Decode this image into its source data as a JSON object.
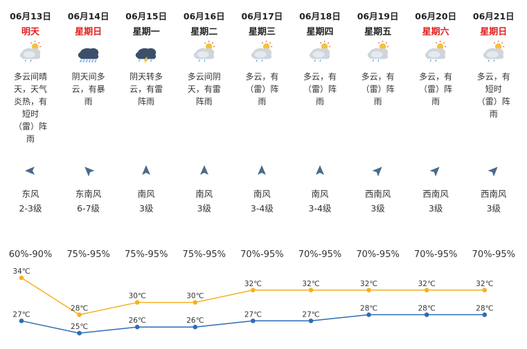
{
  "forecast": [
    {
      "date": "06月13日",
      "dow": "明天",
      "dow_red": true,
      "icon": "partly-cloudy-sun-icon",
      "desc": [
        "多云间晴",
        "天，天气",
        "炎热，有",
        "短时",
        "（雷）阵",
        "雨"
      ],
      "wind_arrow": "east-wind-arrow-icon",
      "wind_dir": "东风",
      "wind_level": "2-3级",
      "humidity": "60%-90%"
    },
    {
      "date": "06月14日",
      "dow": "星期日",
      "dow_red": true,
      "icon": "heavy-rain-cloud-icon",
      "desc": [
        "阴天间多",
        "云，有暴",
        "雨"
      ],
      "wind_arrow": "southeast-wind-arrow-icon",
      "wind_dir": "东南风",
      "wind_level": "6-7级",
      "humidity": "75%-95%"
    },
    {
      "date": "06月15日",
      "dow": "星期一",
      "dow_red": false,
      "icon": "thunderstorm-cloud-icon",
      "desc": [
        "阴天转多",
        "云，有雷",
        "阵雨"
      ],
      "wind_arrow": "south-wind-arrow-icon",
      "wind_dir": "南风",
      "wind_level": "3级",
      "humidity": "75%-95%"
    },
    {
      "date": "06月16日",
      "dow": "星期二",
      "dow_red": false,
      "icon": "partly-cloudy-sun-icon",
      "desc": [
        "多云间阴",
        "天，有雷",
        "阵雨"
      ],
      "wind_arrow": "south-wind-arrow-icon",
      "wind_dir": "南风",
      "wind_level": "3级",
      "humidity": "75%-95%"
    },
    {
      "date": "06月17日",
      "dow": "星期三",
      "dow_red": false,
      "icon": "partly-cloudy-sun-icon",
      "desc": [
        "多云，有",
        "（雷）阵",
        "雨"
      ],
      "wind_arrow": "south-wind-arrow-icon",
      "wind_dir": "南风",
      "wind_level": "3-4级",
      "humidity": "70%-95%"
    },
    {
      "date": "06月18日",
      "dow": "星期四",
      "dow_red": false,
      "icon": "partly-cloudy-sun-icon",
      "desc": [
        "多云，有",
        "（雷）阵",
        "雨"
      ],
      "wind_arrow": "south-wind-arrow-icon",
      "wind_dir": "南风",
      "wind_level": "3-4级",
      "humidity": "70%-95%"
    },
    {
      "date": "06月19日",
      "dow": "星期五",
      "dow_red": false,
      "icon": "partly-cloudy-sun-icon",
      "desc": [
        "多云，有",
        "（雷）阵",
        "雨"
      ],
      "wind_arrow": "southwest-wind-arrow-icon",
      "wind_dir": "西南风",
      "wind_level": "3级",
      "humidity": "70%-95%"
    },
    {
      "date": "06月20日",
      "dow": "星期六",
      "dow_red": true,
      "icon": "partly-cloudy-sun-icon",
      "desc": [
        "多云，有",
        "（雷）阵",
        "雨"
      ],
      "wind_arrow": "southwest-wind-arrow-icon",
      "wind_dir": "西南风",
      "wind_level": "3级",
      "humidity": "70%-95%"
    },
    {
      "date": "06月21日",
      "dow": "星期日",
      "dow_red": true,
      "icon": "partly-cloudy-sun-icon",
      "desc": [
        "多云，有",
        "短时",
        "（雷）阵",
        "雨"
      ],
      "wind_arrow": "southwest-wind-arrow-icon",
      "wind_dir": "西南风",
      "wind_level": "3级",
      "humidity": "70%-95%"
    }
  ],
  "colors": {
    "high": "#f5b21f",
    "low": "#2a6db5",
    "weekend": "#e02020",
    "wind_arrow": "#4a6b8a"
  },
  "chart_data": {
    "type": "line",
    "categories": [
      "06月13日",
      "06月14日",
      "06月15日",
      "06月16日",
      "06月17日",
      "06月18日",
      "06月19日",
      "06月20日",
      "06月21日"
    ],
    "series": [
      {
        "values": [
          34,
          28,
          30,
          30,
          32,
          32,
          32,
          32,
          32
        ],
        "labels": [
          "34℃",
          "28℃",
          "30℃",
          "30℃",
          "32℃",
          "32℃",
          "32℃",
          "32℃",
          "32℃"
        ],
        "color": "#f5b21f"
      },
      {
        "values": [
          27,
          25,
          26,
          26,
          27,
          27,
          28,
          28,
          28
        ],
        "labels": [
          "27℃",
          "25℃",
          "26℃",
          "26℃",
          "27℃",
          "27℃",
          "28℃",
          "28℃",
          "28℃"
        ],
        "color": "#2a6db5"
      }
    ]
  }
}
